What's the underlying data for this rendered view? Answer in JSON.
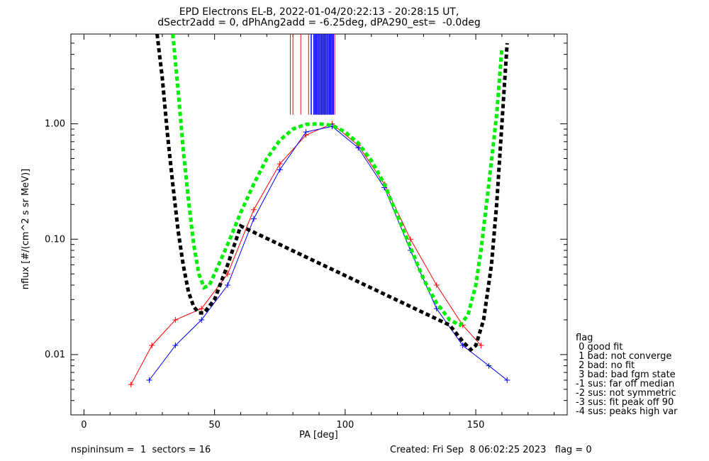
{
  "chart_data": {
    "type": "line",
    "title_line1": "EPD Electrons EL-B, 2022-01-04/20:22:13 - 20:28:15 UT,",
    "title_line2": "dSectr2add = 0, dPhAng2add = -6.25deg, dPA290_est=  -0.0deg",
    "xlabel": "PA [deg]",
    "ylabel": "nflux [#/(cm^2 s sr MeV)]",
    "xlim": [
      -5,
      185
    ],
    "ylim": [
      0.003,
      6.0
    ],
    "yscale": "log",
    "x_ticks": [
      0,
      50,
      100,
      150
    ],
    "x_tick_labels": [
      "0",
      "50",
      "100",
      "150"
    ],
    "y_ticks": [
      0.01,
      0.1,
      1.0
    ],
    "y_tick_labels": [
      "0.01",
      "0.10",
      "1.00"
    ],
    "grid": false,
    "series": [
      {
        "color": "#ff0000",
        "style": "line+plus",
        "x": [
          18,
          26,
          35,
          45,
          55,
          65,
          75,
          85,
          95,
          105,
          115,
          125,
          135,
          145,
          152
        ],
        "y": [
          0.0055,
          0.012,
          0.02,
          0.025,
          0.05,
          0.18,
          0.45,
          0.8,
          1.0,
          0.65,
          0.3,
          0.1,
          0.04,
          0.018,
          0.012
        ]
      },
      {
        "color": "#0000ff",
        "style": "line+plus",
        "x": [
          25,
          35,
          45,
          55,
          65,
          75,
          85,
          95,
          105,
          115,
          125,
          135,
          145,
          155,
          162
        ],
        "y": [
          0.006,
          0.012,
          0.02,
          0.04,
          0.15,
          0.4,
          0.85,
          0.95,
          0.62,
          0.28,
          0.08,
          0.025,
          0.012,
          0.008,
          0.006
        ]
      },
      {
        "name": "",
        "color": "#00ee00",
        "style": "dashed",
        "x": [
          34,
          36,
          38,
          40,
          42,
          44,
          46,
          48,
          50,
          55,
          60,
          65,
          70,
          75,
          80,
          85,
          90,
          95,
          100,
          105,
          110,
          115,
          120,
          125,
          130,
          135,
          140,
          144,
          147,
          150,
          152,
          155,
          158,
          160
        ],
        "y": [
          6.0,
          2.0,
          0.6,
          0.22,
          0.09,
          0.05,
          0.038,
          0.04,
          0.05,
          0.09,
          0.17,
          0.3,
          0.5,
          0.72,
          0.9,
          0.99,
          1.0,
          0.97,
          0.85,
          0.68,
          0.48,
          0.3,
          0.16,
          0.085,
          0.045,
          0.028,
          0.02,
          0.018,
          0.022,
          0.04,
          0.08,
          0.3,
          1.2,
          4.5
        ]
      },
      {
        "name": "",
        "color": "#000000",
        "style": "dashed",
        "x": [
          28,
          30,
          32,
          34,
          36,
          38,
          40,
          42,
          44,
          46,
          50,
          55,
          60,
          140,
          145,
          148,
          150,
          153,
          156,
          158,
          160,
          162
        ],
        "y": [
          6.0,
          2.5,
          0.8,
          0.3,
          0.12,
          0.06,
          0.035,
          0.026,
          0.023,
          0.023,
          0.03,
          0.06,
          0.13,
          0.018,
          0.013,
          0.011,
          0.012,
          0.02,
          0.06,
          0.2,
          1.0,
          5.0
        ]
      }
    ],
    "red_vertical_bars_x": [
      79,
      80,
      83,
      86,
      88,
      90,
      92,
      94,
      96
    ],
    "blue_vertical_bars_x": [
      87,
      88,
      88.5,
      89,
      89.5,
      90,
      90.5,
      91,
      91.5,
      92,
      92.5,
      93,
      93.5,
      94,
      94.5,
      95,
      95.5
    ]
  },
  "legend": {
    "title": "flag",
    "items": [
      " 0 good fit",
      " 1 bad: not converge",
      " 2 bad: no fit",
      " 3 bad: bad fgm state",
      "-1 sus: far off median",
      "-2 sus: not symmetric",
      "-3 sus: fit peak off 90",
      "-4 sus: peaks high var"
    ]
  },
  "footer": {
    "left": "nspininsum =  1  sectors = 16",
    "right": "Created: Fri Sep  8 06:02:25 2023   flag = 0"
  }
}
